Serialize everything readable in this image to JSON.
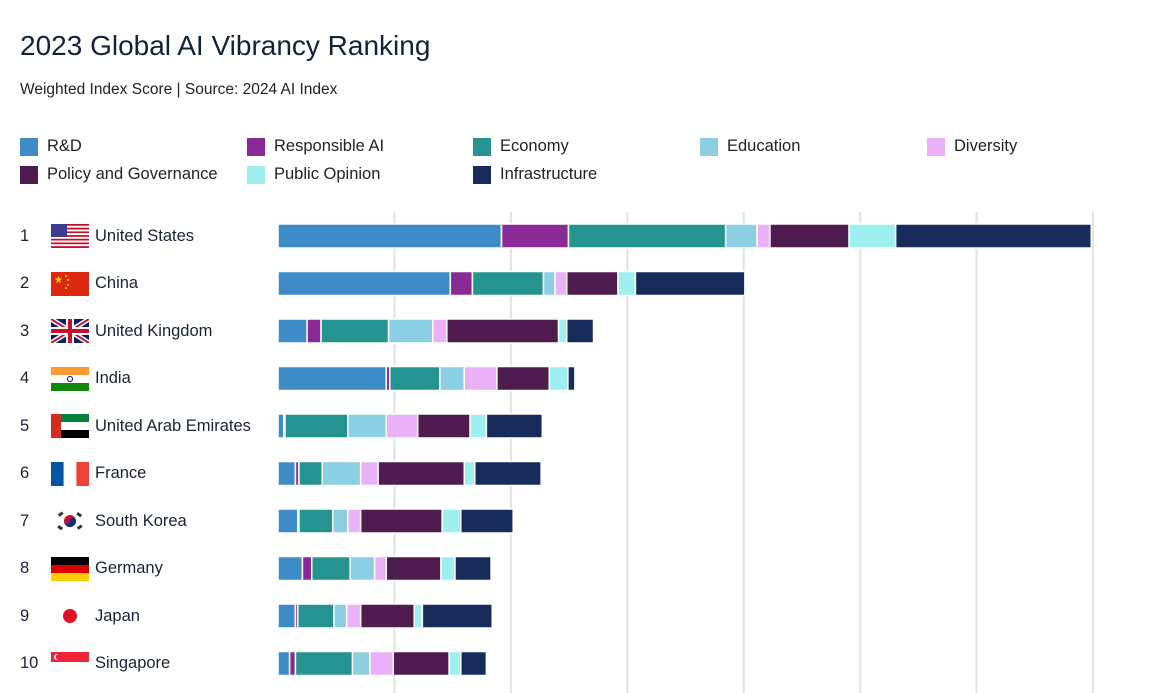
{
  "chart_data": {
    "type": "bar",
    "orientation": "horizontal",
    "stacked": true,
    "title": "2023 Global AI Vibrancy Ranking",
    "subtitle": "Weighted Index Score | Source: 2024 AI Index",
    "xlim": [
      0,
      70
    ],
    "grid": true,
    "legend_position": "top",
    "categories": [
      "United States",
      "China",
      "United Kingdom",
      "India",
      "United Arab Emirates",
      "France",
      "South Korea",
      "Germany",
      "Japan",
      "Singapore"
    ],
    "ranks": [
      "1",
      "2",
      "3",
      "4",
      "5",
      "6",
      "7",
      "8",
      "9",
      "10"
    ],
    "flags": [
      "us-flag",
      "china-flag",
      "uk-flag",
      "india-flag",
      "uae-flag",
      "france-flag",
      "south-korea-flag",
      "germany-flag",
      "japan-flag",
      "singapore-flag"
    ],
    "series": [
      {
        "name": "R&D",
        "color": "#3d8cc8",
        "values": [
          19.2,
          14.8,
          2.5,
          9.3,
          0.5,
          1.5,
          1.7,
          2.1,
          1.5,
          1.0
        ]
      },
      {
        "name": "Responsible AI",
        "color": "#8a2a96",
        "values": [
          5.75,
          1.9,
          1.2,
          0.3,
          0.1,
          0.3,
          0.1,
          0.8,
          0.2,
          0.5
        ]
      },
      {
        "name": "Economy",
        "color": "#25938f",
        "values": [
          13.5,
          6.1,
          5.8,
          4.3,
          5.4,
          2.0,
          2.9,
          3.3,
          3.1,
          4.9
        ]
      },
      {
        "name": "Education",
        "color": "#8ccfe3",
        "values": [
          2.7,
          1.0,
          3.8,
          2.1,
          3.3,
          3.3,
          1.3,
          2.1,
          1.1,
          1.5
        ]
      },
      {
        "name": "Diversity",
        "color": "#eab0f8",
        "values": [
          1.1,
          1.0,
          1.2,
          2.8,
          2.7,
          1.5,
          1.1,
          1.0,
          1.2,
          2.0
        ]
      },
      {
        "name": "Policy and Governance",
        "color": "#4f1c4f",
        "values": [
          6.8,
          4.4,
          9.6,
          4.5,
          4.5,
          7.4,
          7.0,
          4.7,
          4.6,
          4.8
        ]
      },
      {
        "name": "Public Opinion",
        "color": "#9ef0f0",
        "values": [
          4.0,
          1.5,
          0.7,
          1.6,
          1.4,
          0.9,
          1.6,
          1.2,
          0.7,
          1.0
        ]
      },
      {
        "name": "Infrastructure",
        "color": "#172c5a",
        "values": [
          16.8,
          9.4,
          2.3,
          0.6,
          4.8,
          5.7,
          4.5,
          3.1,
          6.0,
          2.2
        ]
      }
    ]
  }
}
